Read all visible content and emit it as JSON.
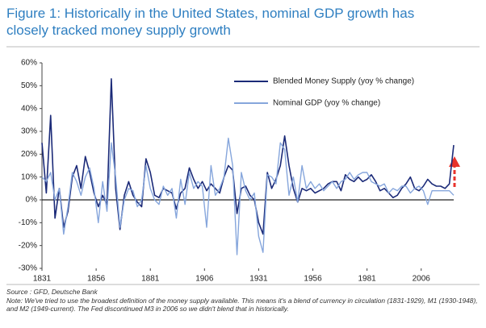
{
  "chart_data": {
    "type": "line",
    "title": "Figure 1: Historically in the United States, nominal GDP growth has closely tracked money supply growth",
    "source": "Source : GFD, Deutsche Bank",
    "note": "Note: We've tried to use the broadest definition of the money supply available. This means it's a blend of currency in circulation (1831-1929), M1 (1930-1948), and M2 (1949-current). The Fed discontinued M3 in 2006 so we didn't blend that in historically.",
    "x": [
      1831,
      1833,
      1835,
      1837,
      1839,
      1841,
      1843,
      1845,
      1847,
      1849,
      1851,
      1853,
      1855,
      1857,
      1859,
      1861,
      1863,
      1865,
      1867,
      1869,
      1871,
      1873,
      1875,
      1877,
      1879,
      1881,
      1883,
      1885,
      1887,
      1889,
      1891,
      1893,
      1895,
      1897,
      1899,
      1901,
      1903,
      1905,
      1907,
      1909,
      1911,
      1913,
      1915,
      1917,
      1919,
      1921,
      1923,
      1925,
      1927,
      1929,
      1931,
      1933,
      1935,
      1937,
      1939,
      1941,
      1943,
      1945,
      1947,
      1949,
      1951,
      1953,
      1955,
      1957,
      1959,
      1961,
      1963,
      1965,
      1967,
      1969,
      1971,
      1973,
      1975,
      1977,
      1979,
      1981,
      1983,
      1985,
      1987,
      1989,
      1991,
      1993,
      1995,
      1997,
      1999,
      2001,
      2003,
      2005,
      2007,
      2009,
      2011,
      2013,
      2015,
      2017,
      2019,
      2021
    ],
    "series": [
      {
        "name": "Blended Money Supply (yoy % change)",
        "color": "#1b2a78",
        "values": [
          25,
          3,
          37,
          -8,
          5,
          -12,
          -5,
          10,
          15,
          5,
          19,
          12,
          3,
          -3,
          2,
          -2,
          53,
          5,
          -13,
          2,
          8,
          2,
          -1,
          -3,
          18,
          12,
          2,
          1,
          5,
          4,
          3,
          -4,
          3,
          5,
          14,
          9,
          5,
          8,
          4,
          7,
          5,
          3,
          10,
          15,
          13,
          -6,
          5,
          6,
          2,
          0,
          -10,
          -15,
          12,
          5,
          9,
          15,
          28,
          15,
          5,
          -1,
          5,
          4,
          5,
          3,
          4,
          5,
          7,
          8,
          8,
          4,
          11,
          9,
          8,
          10,
          8,
          9,
          11,
          8,
          4,
          5,
          3,
          1,
          2,
          5,
          7,
          10,
          5,
          4,
          6,
          9,
          7,
          6,
          6,
          5,
          7,
          24
        ]
      },
      {
        "name": "Nominal GDP (yoy % change)",
        "color": "#86a6dc",
        "values": [
          10,
          8,
          12,
          0,
          5,
          -15,
          -3,
          12,
          8,
          2,
          10,
          14,
          5,
          -10,
          8,
          -5,
          25,
          10,
          -12,
          0,
          5,
          4,
          -3,
          0,
          15,
          5,
          0,
          -2,
          6,
          2,
          5,
          -8,
          9,
          -2,
          12,
          5,
          8,
          6,
          -12,
          15,
          2,
          5,
          10,
          27,
          15,
          -24,
          12,
          4,
          0,
          3,
          -16,
          -23,
          11,
          10,
          7,
          25,
          22,
          2,
          10,
          -1,
          15,
          5,
          8,
          5,
          7,
          4,
          6,
          8,
          5,
          8,
          9,
          12,
          9,
          11,
          12,
          12,
          8,
          7,
          6,
          7,
          3,
          5,
          4,
          6,
          6,
          3,
          5,
          6,
          4,
          -2,
          4,
          4,
          4,
          4,
          4,
          2
        ]
      }
    ],
    "xlim": [
      1831,
      2021
    ],
    "xticks": [
      1831,
      1856,
      1881,
      1906,
      1931,
      1956,
      1981,
      2006
    ],
    "ylim": [
      -30,
      60
    ],
    "yticks": [
      {
        "value": -30,
        "label": "-30%"
      },
      {
        "value": -20,
        "label": "-20%"
      },
      {
        "value": -10,
        "label": "-10%"
      },
      {
        "value": 0,
        "label": "0%"
      },
      {
        "value": 10,
        "label": "10%"
      },
      {
        "value": 20,
        "label": "20%"
      },
      {
        "value": 30,
        "label": "30%"
      },
      {
        "value": 40,
        "label": "40%"
      },
      {
        "value": 50,
        "label": "50%"
      },
      {
        "value": 60,
        "label": "60%"
      }
    ],
    "grid": false,
    "legend_loc": "upper center"
  }
}
